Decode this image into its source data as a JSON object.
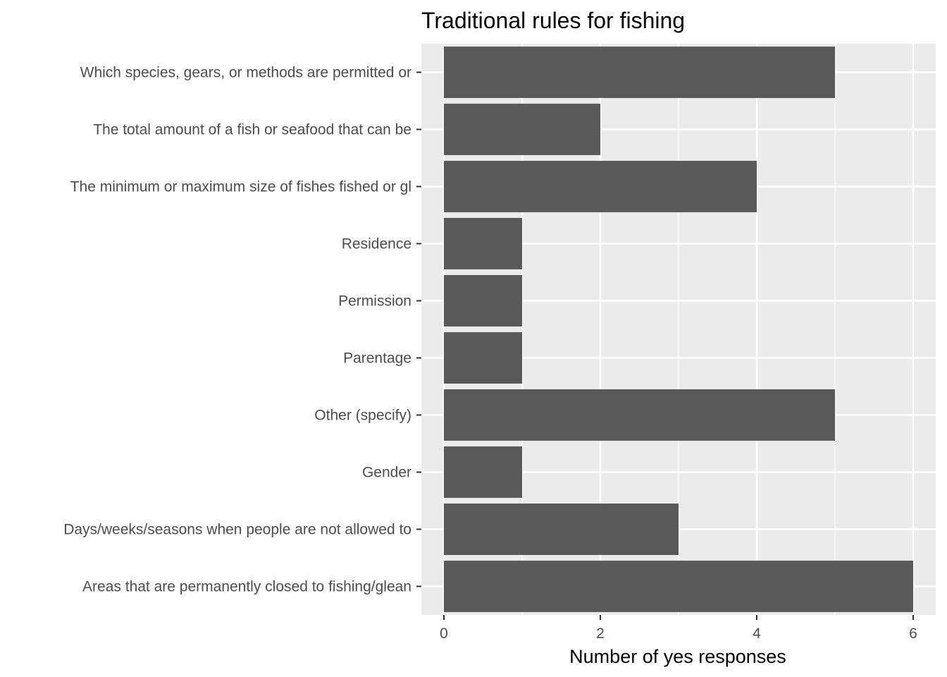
{
  "chart_data": {
    "type": "bar",
    "orientation": "horizontal",
    "title": "Traditional rules for fishing",
    "xlabel": "Number of yes responses",
    "ylabel": "",
    "xlim": [
      0,
      6.3
    ],
    "x_ticks": [
      0,
      2,
      4,
      6
    ],
    "categories": [
      "Which species, gears, or methods are permitted or",
      "The total amount of a fish or seafood that can be",
      "The minimum or maximum size of fishes fished or gl",
      "Residence",
      "Permission",
      "Parentage",
      "Other (specify)",
      "Gender",
      "Days/weeks/seasons when people are not allowed to",
      "Areas that are permanently closed to fishing/glean"
    ],
    "values": [
      5,
      2,
      4,
      1,
      1,
      1,
      5,
      1,
      3,
      6
    ],
    "grid": true,
    "legend": "none",
    "colors": {
      "bar": "#595959",
      "panel": "#ebebeb",
      "grid": "#ffffff",
      "tick": "#333333"
    }
  }
}
